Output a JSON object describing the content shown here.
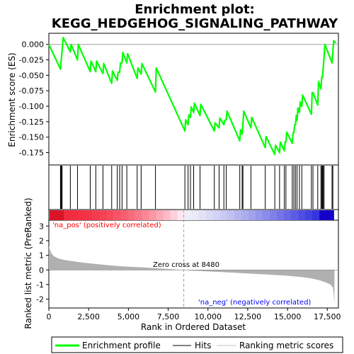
{
  "chart_data": {
    "type": "line",
    "title_line1": "Enrichment plot:",
    "title_line2": "KEGG_HEDGEHOG_SIGNALING_PATHWAY",
    "xlabel": "Rank in Ordered Dataset",
    "ylabel_top": "Enrichment score (ES)",
    "ylabel_bottom": "Ranked list metric (PreRanked)",
    "x_ticks": [
      "0",
      "2,500",
      "5,000",
      "7,500",
      "10,000",
      "12,500",
      "15,000",
      "17,500"
    ],
    "x_tick_values": [
      0,
      2500,
      5000,
      7500,
      10000,
      12500,
      15000,
      17500
    ],
    "es_y_ticks": [
      "0.000",
      "-0.025",
      "-0.050",
      "-0.075",
      "-0.100",
      "-0.125",
      "-0.150",
      "-0.175"
    ],
    "es_y_tick_values": [
      0.0,
      -0.025,
      -0.05,
      -0.075,
      -0.1,
      -0.125,
      -0.15,
      -0.175
    ],
    "metric_y_ticks": [
      "3",
      "2",
      "1",
      "0",
      "-1",
      "-2"
    ],
    "metric_y_tick_values": [
      3,
      2,
      1,
      0,
      -1,
      -2
    ],
    "xlim": [
      0,
      18200
    ],
    "es_ylim": [
      -0.195,
      0.018
    ],
    "metric_ylim": [
      -2.6,
      3.4
    ],
    "total_genes": 17900,
    "zero_cross_rank": 8480,
    "zero_cross_label": "Zero cross at 8480",
    "pos_label": "'na_pos' (positively correlated)",
    "neg_label": "'na_neg' (negatively correlated)",
    "hit_ranks": [
      730,
      760,
      800,
      830,
      1350,
      1800,
      2600,
      2950,
      3400,
      3950,
      4300,
      4450,
      4600,
      4900,
      5550,
      5800,
      6700,
      8550,
      8750,
      8900,
      9100,
      9500,
      10400,
      10700,
      11000,
      11150,
      12000,
      12150,
      12200,
      12700,
      13600,
      14200,
      14500,
      14800,
      14900,
      15300,
      15400,
      15500,
      15600,
      15750,
      15900,
      16500,
      16600,
      16900,
      17100,
      17150,
      17200,
      17250,
      17300,
      17800,
      17850
    ],
    "es_points": [
      [
        0,
        0.0
      ],
      [
        730,
        -0.04
      ],
      [
        760,
        -0.03
      ],
      [
        800,
        -0.02
      ],
      [
        830,
        -0.01
      ],
      [
        900,
        0.011
      ],
      [
        1350,
        -0.012
      ],
      [
        1400,
        0.0
      ],
      [
        1800,
        -0.025
      ],
      [
        1850,
        0.0
      ],
      [
        2600,
        -0.044
      ],
      [
        2650,
        -0.027
      ],
      [
        2950,
        -0.044
      ],
      [
        3000,
        -0.027
      ],
      [
        3400,
        -0.047
      ],
      [
        3450,
        -0.031
      ],
      [
        3950,
        -0.063
      ],
      [
        4000,
        -0.043
      ],
      [
        4300,
        -0.058
      ],
      [
        4350,
        -0.045
      ],
      [
        4450,
        -0.045
      ],
      [
        4500,
        -0.03
      ],
      [
        4600,
        -0.03
      ],
      [
        4650,
        -0.013
      ],
      [
        4900,
        -0.03
      ],
      [
        4950,
        -0.015
      ],
      [
        5550,
        -0.055
      ],
      [
        5600,
        -0.038
      ],
      [
        5800,
        -0.048
      ],
      [
        5850,
        -0.031
      ],
      [
        6700,
        -0.077
      ],
      [
        6750,
        -0.038
      ],
      [
        8550,
        -0.14
      ],
      [
        8600,
        -0.122
      ],
      [
        8750,
        -0.13
      ],
      [
        8800,
        -0.114
      ],
      [
        8900,
        -0.118
      ],
      [
        8950,
        -0.101
      ],
      [
        9100,
        -0.11
      ],
      [
        9150,
        -0.095
      ],
      [
        9500,
        -0.115
      ],
      [
        9550,
        -0.097
      ],
      [
        10400,
        -0.14
      ],
      [
        10450,
        -0.127
      ],
      [
        10700,
        -0.135
      ],
      [
        10750,
        -0.119
      ],
      [
        11000,
        -0.13
      ],
      [
        11050,
        -0.123
      ],
      [
        11150,
        -0.122
      ],
      [
        11200,
        -0.108
      ],
      [
        12000,
        -0.156
      ],
      [
        12050,
        -0.138
      ],
      [
        12150,
        -0.145
      ],
      [
        12200,
        -0.127
      ],
      [
        12250,
        -0.108
      ],
      [
        12700,
        -0.135
      ],
      [
        12750,
        -0.118
      ],
      [
        13600,
        -0.167
      ],
      [
        13650,
        -0.149
      ],
      [
        14200,
        -0.178
      ],
      [
        14250,
        -0.163
      ],
      [
        14500,
        -0.175
      ],
      [
        14550,
        -0.158
      ],
      [
        14800,
        -0.172
      ],
      [
        14850,
        -0.158
      ],
      [
        14900,
        -0.158
      ],
      [
        14950,
        -0.142
      ],
      [
        15300,
        -0.16
      ],
      [
        15350,
        -0.143
      ],
      [
        15400,
        -0.143
      ],
      [
        15450,
        -0.13
      ],
      [
        15500,
        -0.13
      ],
      [
        15550,
        -0.115
      ],
      [
        15600,
        -0.123
      ],
      [
        15650,
        -0.103
      ],
      [
        15750,
        -0.11
      ],
      [
        15800,
        -0.093
      ],
      [
        15900,
        -0.1
      ],
      [
        15950,
        -0.082
      ],
      [
        16500,
        -0.113
      ],
      [
        16550,
        -0.078
      ],
      [
        16600,
        -0.078
      ],
      [
        16900,
        -0.098
      ],
      [
        16950,
        -0.06
      ],
      [
        17100,
        -0.072
      ],
      [
        17150,
        -0.053
      ],
      [
        17200,
        -0.053
      ],
      [
        17250,
        -0.036
      ],
      [
        17300,
        -0.02
      ],
      [
        17350,
        0.0
      ],
      [
        17800,
        -0.03
      ],
      [
        17850,
        -0.012
      ],
      [
        17900,
        0.006
      ],
      [
        18050,
        0.002
      ]
    ],
    "metric_shape": [
      [
        0,
        1.65
      ],
      [
        50,
        1.45
      ],
      [
        150,
        1.15
      ],
      [
        300,
        0.95
      ],
      [
        600,
        0.78
      ],
      [
        1000,
        0.68
      ],
      [
        2000,
        0.52
      ],
      [
        3000,
        0.4
      ],
      [
        4000,
        0.3
      ],
      [
        5000,
        0.22
      ],
      [
        6000,
        0.17
      ],
      [
        7000,
        0.1
      ],
      [
        8000,
        0.03
      ],
      [
        8480,
        0.0
      ],
      [
        9000,
        -0.04
      ],
      [
        10000,
        -0.1
      ],
      [
        11000,
        -0.15
      ],
      [
        12000,
        -0.21
      ],
      [
        13000,
        -0.27
      ],
      [
        14000,
        -0.33
      ],
      [
        15000,
        -0.4
      ],
      [
        16000,
        -0.5
      ],
      [
        16500,
        -0.58
      ],
      [
        17000,
        -0.7
      ],
      [
        17400,
        -0.85
      ],
      [
        17700,
        -1.0
      ],
      [
        17850,
        -1.2
      ],
      [
        17900,
        -1.6
      ],
      [
        17950,
        -2.3
      ]
    ],
    "legend": [
      "Enrichment profile",
      "Hits",
      "Ranking metric scores"
    ],
    "colors": {
      "es_line": "#00ff00",
      "hits": "#000000",
      "metric_fill": "#b0b0b0",
      "pos_label": "#ff0000",
      "neg_label": "#0000ff",
      "zero_line": "#a0a0a0"
    }
  }
}
